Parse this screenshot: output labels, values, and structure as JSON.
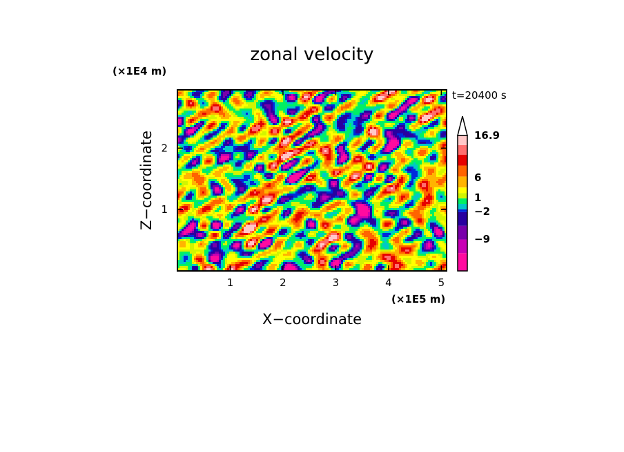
{
  "chart_data": {
    "type": "heatmap",
    "title": "zonal velocity",
    "xlabel": "X−coordinate",
    "ylabel": "Z−coordinate",
    "x_unit": "(×1E5 m)",
    "y_unit": "(×1E4 m)",
    "time_label": "t=20400 s",
    "xlim": [
      0,
      5.1
    ],
    "ylim": [
      0,
      2.95
    ],
    "xticks": [
      "1",
      "2",
      "3",
      "4",
      "5"
    ],
    "yticks": [
      "1",
      "2"
    ],
    "colorbar": {
      "labels": [
        "16.9",
        "6",
        "1",
        "−2",
        "−9"
      ],
      "levels": [
        -9,
        -6,
        -4,
        -2,
        -1,
        0,
        1,
        2,
        4,
        6,
        9,
        12,
        16.9
      ],
      "colors": [
        "#ff0aa0",
        "#c800b4",
        "#7800aa",
        "#2800a0",
        "#0028dc",
        "#00c8c8",
        "#00f064",
        "#d2f500",
        "#ffff00",
        "#ffb400",
        "#ff6400",
        "#e60000",
        "#ff6e6e",
        "#ffc8c8"
      ],
      "extend_max_arrow": true
    },
    "field_description_note": ""
  }
}
